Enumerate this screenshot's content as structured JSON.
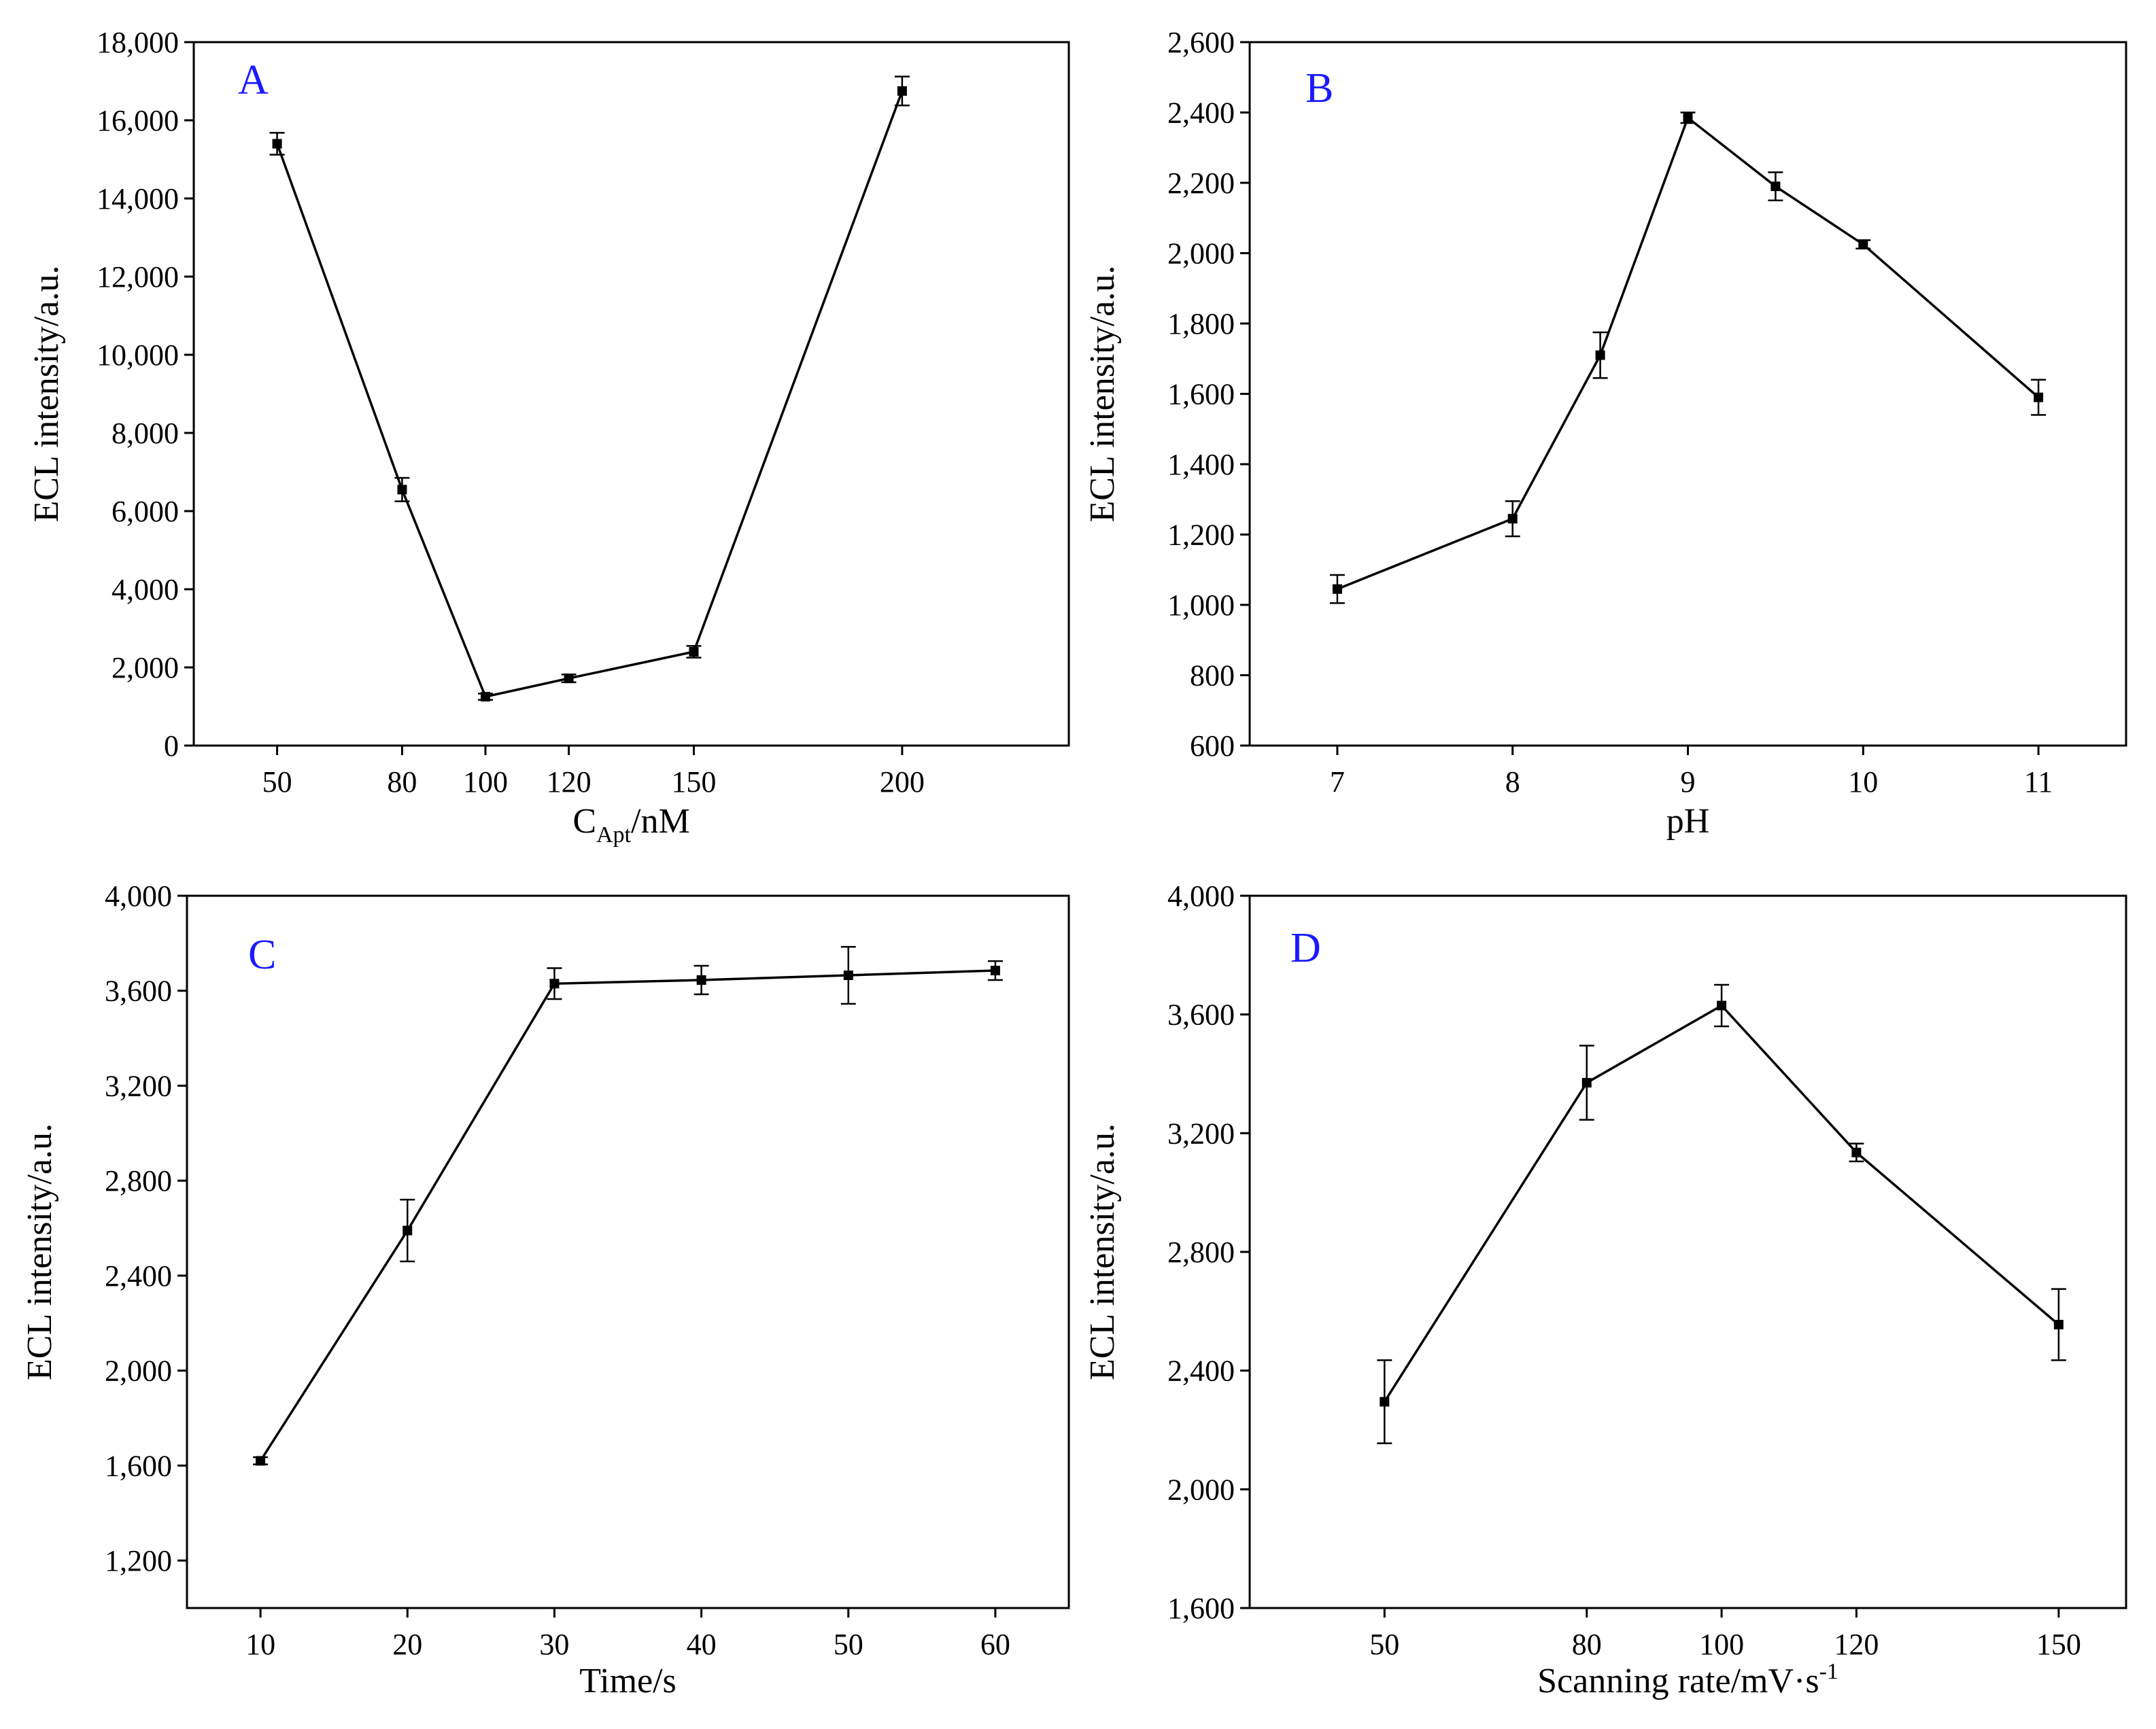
{
  "figure": {
    "letter_color": "#1a1aff"
  },
  "chart_data": [
    {
      "type": "line",
      "panel": "A",
      "xlabel_main": "C",
      "xlabel_sub": "Apt",
      "xlabel_tail": "/nM",
      "ylabel": "ECL intensity/a.u.",
      "xlim": [
        30,
        240
      ],
      "ylim": [
        0,
        18000
      ],
      "xticks": [
        50,
        80,
        100,
        120,
        150,
        200
      ],
      "xtick_labels": [
        "50",
        "80",
        "100",
        "120",
        "150",
        "200"
      ],
      "yticks": [
        0,
        2000,
        4000,
        6000,
        8000,
        10000,
        12000,
        14000,
        16000,
        18000
      ],
      "ytick_labels": [
        "0",
        "2,000",
        "4,000",
        "6,000",
        "8,000",
        "10,000",
        "12,000",
        "14,000",
        "16,000",
        "18,000"
      ],
      "x": [
        50,
        80,
        100,
        120,
        150,
        200
      ],
      "y": [
        15400,
        6550,
        1250,
        1720,
        2400,
        16750
      ],
      "err": [
        280,
        300,
        80,
        100,
        150,
        370
      ]
    },
    {
      "type": "line",
      "panel": "B",
      "xlabel": "pH",
      "ylabel": "ECL intensity/a.u.",
      "xlim": [
        6.5,
        11.5
      ],
      "ylim": [
        600,
        2600
      ],
      "xticks": [
        7,
        8,
        9,
        10,
        11
      ],
      "xtick_labels": [
        "7",
        "8",
        "9",
        "10",
        "11"
      ],
      "yticks": [
        600,
        800,
        1000,
        1200,
        1400,
        1600,
        1800,
        2000,
        2200,
        2400,
        2600
      ],
      "ytick_labels": [
        "600",
        "800",
        "1,000",
        "1,200",
        "1,400",
        "1,600",
        "1,800",
        "2,000",
        "2,200",
        "2,400",
        "2,600"
      ],
      "x": [
        7,
        8,
        8.5,
        9,
        9.5,
        10,
        11
      ],
      "y": [
        1045,
        1245,
        1710,
        2385,
        2190,
        2025,
        1590
      ],
      "err": [
        40,
        50,
        65,
        15,
        40,
        12,
        50
      ]
    },
    {
      "type": "line",
      "panel": "C",
      "xlabel": "Time/s",
      "ylabel": "ECL intensity/a.u.",
      "xlim": [
        5,
        65
      ],
      "ylim": [
        1000,
        4000
      ],
      "xticks": [
        10,
        20,
        30,
        40,
        50,
        60
      ],
      "xtick_labels": [
        "10",
        "20",
        "30",
        "40",
        "50",
        "60"
      ],
      "yticks": [
        1200,
        1600,
        2000,
        2400,
        2800,
        3200,
        3600,
        4000
      ],
      "ytick_labels": [
        "1,200",
        "1,600",
        "2,000",
        "2,400",
        "2,800",
        "3,200",
        "3,600",
        "4,000"
      ],
      "x": [
        10,
        20,
        30,
        40,
        50,
        60
      ],
      "y": [
        1620,
        2590,
        3630,
        3645,
        3665,
        3685
      ],
      "err": [
        15,
        130,
        65,
        60,
        120,
        40
      ]
    },
    {
      "type": "line",
      "panel": "D",
      "xlabel_main": "Scanning rate/mV·s",
      "xlabel_sup": "-1",
      "ylabel": "ECL intensity/a.u.",
      "xlim": [
        30,
        160
      ],
      "ylim": [
        1600,
        4000
      ],
      "xticks": [
        50,
        80,
        100,
        120,
        150
      ],
      "xtick_labels": [
        "50",
        "80",
        "100",
        "120",
        "150"
      ],
      "yticks": [
        1600,
        2000,
        2400,
        2800,
        3200,
        3600,
        4000
      ],
      "ytick_labels": [
        "1,600",
        "2,000",
        "2,400",
        "2,800",
        "3,200",
        "3,600",
        "4,000"
      ],
      "x": [
        50,
        80,
        100,
        120,
        150
      ],
      "y": [
        2295,
        3370,
        3630,
        3135,
        2555
      ],
      "err": [
        140,
        125,
        70,
        30,
        120
      ]
    }
  ]
}
